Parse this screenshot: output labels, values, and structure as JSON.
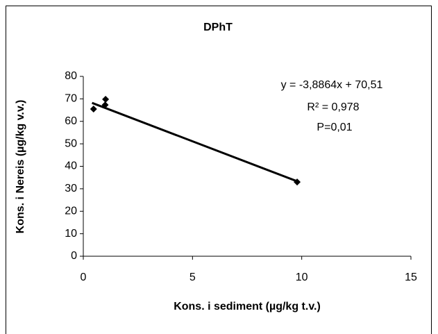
{
  "chart_data": {
    "type": "scatter",
    "title": "DPhT",
    "x_label": "Kons. i sediment (µg/kg t.v.)",
    "y_label": "Kons. i Nereis (µg/kg v.v.)",
    "x": [
      0.47,
      1.02,
      1.0,
      9.79
    ],
    "values": [
      65.5,
      69.8,
      67.3,
      33.0
    ],
    "color": "#000000",
    "trendline": {
      "x": [
        0.4,
        9.8
      ],
      "values": [
        68.2,
        33.3
      ],
      "color": "#000000"
    },
    "annotations": [
      "y = -3,8864x + 70,51",
      "R² = 0,978",
      "P=0,01"
    ],
    "xlim": [
      0,
      15
    ],
    "xticks": [
      0,
      5,
      10,
      15
    ],
    "ylim": [
      0,
      80
    ],
    "yticks": [
      0,
      10,
      20,
      30,
      40,
      50,
      60,
      70,
      80
    ],
    "grid": false
  }
}
